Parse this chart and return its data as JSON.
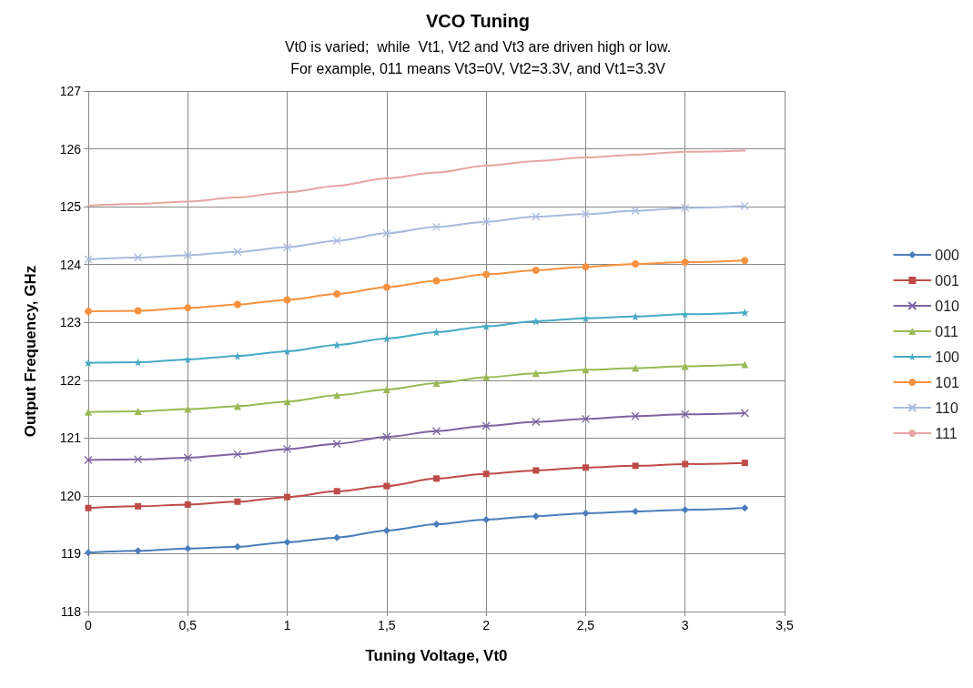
{
  "chart_data": {
    "type": "line",
    "title": "VCO Tuning",
    "subtitle": "Vt0 is varied;  while  Vt1, Vt2 and Vt3 are driven high or low.\nFor example, 011 means Vt3=0V, Vt2=3.3V, and Vt1=3.3V",
    "xlabel": "Tuning Voltage, Vt0",
    "ylabel": "Output Frequency, GHz",
    "x": [
      0,
      0.25,
      0.5,
      0.75,
      1,
      1.25,
      1.5,
      1.75,
      2,
      2.25,
      2.5,
      2.75,
      3,
      3.3
    ],
    "xlim": [
      0,
      3.5
    ],
    "xticks": [
      0,
      {
        "value": 0.5,
        "label": "0,5"
      },
      1,
      {
        "value": 1.5,
        "label": "1,5"
      },
      2,
      {
        "value": 2.5,
        "label": "2,5"
      },
      3,
      {
        "value": 3.5,
        "label": "3,5"
      }
    ],
    "ylim": [
      118,
      127
    ],
    "yticks": [
      118,
      119,
      120,
      121,
      122,
      123,
      124,
      125,
      126,
      127
    ],
    "grid": true,
    "legend": "right",
    "line_style": "solid",
    "series": [
      {
        "name": "000",
        "color": "#4a7ebb",
        "marker": "diamond",
        "values": [
          119.02,
          119.05,
          119.09,
          119.12,
          119.2,
          119.28,
          119.4,
          119.51,
          119.59,
          119.65,
          119.7,
          119.73,
          119.76,
          119.79
        ]
      },
      {
        "name": "001",
        "color": "#be4b48",
        "marker": "square",
        "values": [
          119.79,
          119.82,
          119.85,
          119.9,
          119.98,
          120.08,
          120.17,
          120.3,
          120.38,
          120.44,
          120.49,
          120.52,
          120.55,
          120.57
        ]
      },
      {
        "name": "010",
        "color": "#7e63a1",
        "marker": "cross",
        "values": [
          120.62,
          120.63,
          120.66,
          120.72,
          120.81,
          120.9,
          121.02,
          121.12,
          121.21,
          121.28,
          121.33,
          121.38,
          121.41,
          121.43
        ]
      },
      {
        "name": "011",
        "color": "#98b954",
        "marker": "triangle",
        "values": [
          121.45,
          121.46,
          121.5,
          121.55,
          121.63,
          121.74,
          121.84,
          121.95,
          122.05,
          122.12,
          122.18,
          122.21,
          122.24,
          122.27
        ]
      },
      {
        "name": "100",
        "color": "#46aac5",
        "marker": "star",
        "values": [
          122.3,
          122.31,
          122.36,
          122.42,
          122.5,
          122.61,
          122.72,
          122.83,
          122.93,
          123.02,
          123.07,
          123.1,
          123.14,
          123.17
        ]
      },
      {
        "name": "101",
        "color": "#f69240",
        "marker": "circle",
        "values": [
          123.19,
          123.2,
          123.25,
          123.31,
          123.39,
          123.49,
          123.61,
          123.72,
          123.83,
          123.9,
          123.96,
          124.01,
          124.04,
          124.07
        ]
      },
      {
        "name": "110",
        "color": "#a6bbde",
        "marker": "cross",
        "values": [
          124.09,
          124.12,
          124.16,
          124.22,
          124.3,
          124.41,
          124.54,
          124.65,
          124.74,
          124.83,
          124.87,
          124.93,
          124.98,
          125.01
        ]
      },
      {
        "name": "111",
        "color": "#e6a5a4",
        "marker": "none",
        "values": [
          125.02,
          125.05,
          125.09,
          125.16,
          125.25,
          125.36,
          125.49,
          125.59,
          125.71,
          125.79,
          125.85,
          125.9,
          125.95,
          125.97
        ]
      }
    ]
  }
}
